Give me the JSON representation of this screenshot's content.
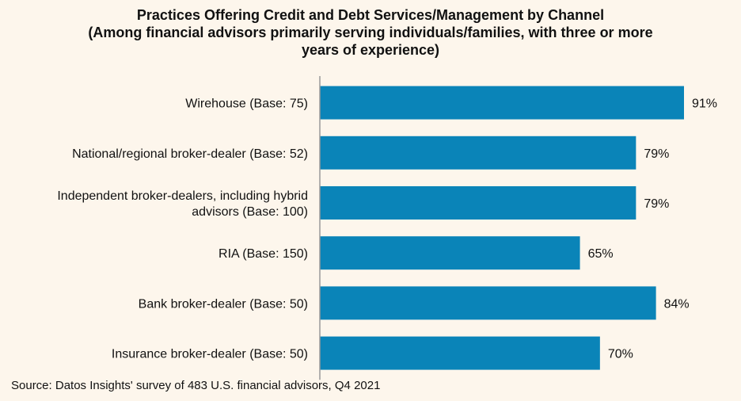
{
  "chart_data": {
    "type": "bar",
    "orientation": "horizontal",
    "title": "Practices Offering Credit and Debt Services/Management by Channel",
    "subtitle_lines": [
      "(Among financial advisors primarily serving individuals/families, with three or more",
      "years of experience)"
    ],
    "categories": [
      [
        "Wirehouse (Base: 75)"
      ],
      [
        "National/regional broker-dealer (Base: 52)"
      ],
      [
        "Independent broker-dealers, including hybrid",
        "advisors (Base: 100)"
      ],
      [
        "RIA (Base: 150)"
      ],
      [
        "Bank broker-dealer (Base: 50)"
      ],
      [
        "Insurance broker-dealer (Base: 50)"
      ]
    ],
    "values": [
      91,
      79,
      79,
      65,
      84,
      70
    ],
    "value_labels": [
      "91%",
      "79%",
      "79%",
      "65%",
      "84%",
      "70%"
    ],
    "xlim": [
      0,
      91
    ],
    "grid": false,
    "bar_color": "#0a84b8",
    "source": "Source: Datos Insights' survey of 483 U.S. financial advisors, Q4 2021"
  }
}
